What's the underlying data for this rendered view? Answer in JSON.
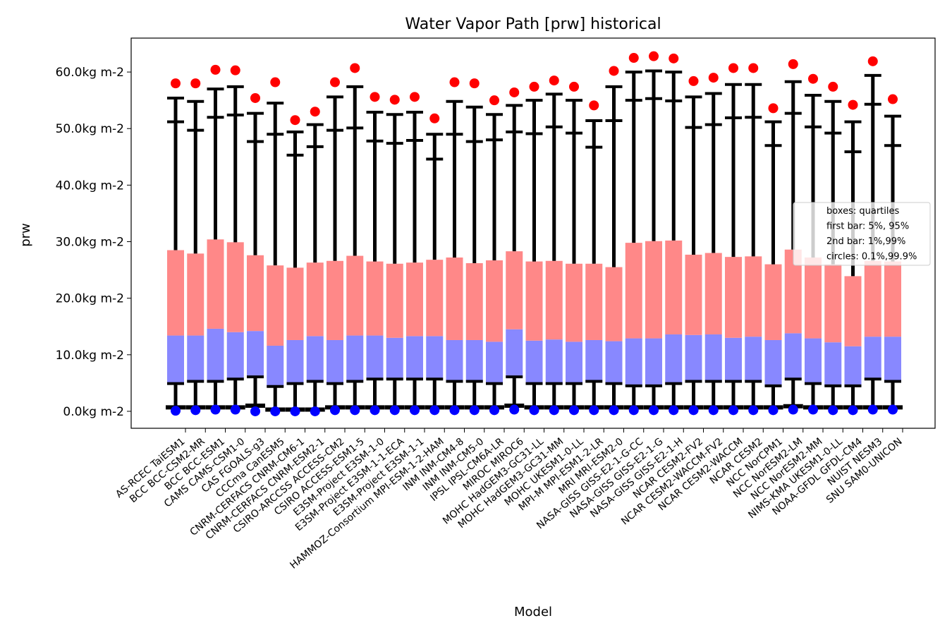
{
  "chart_data": {
    "type": "box",
    "title": "Water Vapor Path [prw] historical",
    "xlabel": "Model",
    "ylabel": "prw",
    "ylim": [
      -3,
      66
    ],
    "yticks": [
      {
        "value": 0,
        "label": "0.0kg m-2"
      },
      {
        "value": 10,
        "label": "10.0kg m-2"
      },
      {
        "value": 20,
        "label": "20.0kg m-2"
      },
      {
        "value": 30,
        "label": "30.0kg m-2"
      },
      {
        "value": 40,
        "label": "40.0kg m-2"
      },
      {
        "value": 50,
        "label": "50.0kg m-2"
      },
      {
        "value": 60,
        "label": "60.0kg m-2"
      }
    ],
    "legend": {
      "position": "right",
      "entries": [
        "boxes: quartiles",
        "first bar: 5%, 95%",
        "2nd bar: 1%,99%",
        "circles: 0.1%,99.9%"
      ]
    },
    "colors": {
      "lower_box": "#8888ff",
      "upper_box": "#ff8888",
      "whisker": "#000000",
      "high_circle": "#ff0000",
      "low_circle": "#0000ff"
    },
    "models": [
      "AS-RCEC TaiESM1",
      "BCC BCC-CSM2-MR",
      "BCC BCC-ESM1",
      "CAMS CAMS-CSM1-0",
      "CAS FGOALS-g3",
      "CCCma CanESM5",
      "CNRM-CERFACS CNRM-CM6-1",
      "CNRM-CERFACS CNRM-ESM2-1",
      "CSIRO-ARCCSS ACCESS-CM2",
      "CSIRO ACCESS-ESM1-5",
      "E3SM-Project E3SM-1-0",
      "E3SM-Project E3SM-1-1-ECA",
      "E3SM-Project E3SM-1-1",
      "HAMMOZ-Consortium MPI-ESM-1-2-HAM",
      "INM INM-CM4-8",
      "INM INM-CM5-0",
      "IPSL IPSL-CM6A-LR",
      "MIROC MIROC6",
      "MOHC HadGEM3-GC31-LL",
      "MOHC HadGEM3-GC31-MM",
      "MOHC UKESM1-0-LL",
      "MPI-M MPI-ESM1-2-LR",
      "MRI MRI-ESM2-0",
      "NASA-GISS GISS-E2-1-G-CC",
      "NASA-GISS GISS-E2-1-G",
      "NASA-GISS GISS-E2-1-H",
      "NCAR CESM2-FV2",
      "NCAR CESM2-WACCM-FV2",
      "NCAR CESM2-WACCM",
      "NCAR CESM2",
      "NCC NorCPM1",
      "NCC NorESM2-LM",
      "NCC NorESM2-MM",
      "NIMS-KMA UKESM1-0-LL",
      "NOAA-GFDL GFDL-CM4",
      "NUIST NESM3",
      "SNU SAM0-UNICON"
    ],
    "stats": [
      {
        "p0_1": 0.1,
        "p1": 0.7,
        "p5": 4.9,
        "q1": 4.9,
        "median": 13.4,
        "q3": 28.5,
        "p95": 51.2,
        "p99": 55.4,
        "p99_9": 58.0
      },
      {
        "p0_1": 0.2,
        "p1": 0.7,
        "p5": 5.3,
        "q1": 5.3,
        "median": 13.4,
        "q3": 27.9,
        "p95": 49.7,
        "p99": 54.8,
        "p99_9": 58.0
      },
      {
        "p0_1": 0.3,
        "p1": 0.7,
        "p5": 5.3,
        "q1": 5.3,
        "median": 14.6,
        "q3": 30.4,
        "p95": 52.0,
        "p99": 57.0,
        "p99_9": 60.4
      },
      {
        "p0_1": 0.3,
        "p1": 0.7,
        "p5": 5.7,
        "q1": 5.7,
        "median": 14.0,
        "q3": 29.9,
        "p95": 52.4,
        "p99": 57.4,
        "p99_9": 60.3
      },
      {
        "p0_1": 0.0,
        "p1": 1.0,
        "p5": 6.1,
        "q1": 6.1,
        "median": 14.2,
        "q3": 27.6,
        "p95": 47.7,
        "p99": 52.7,
        "p99_9": 55.4
      },
      {
        "p0_1": 0.0,
        "p1": 0.3,
        "p5": 4.4,
        "q1": 4.4,
        "median": 11.6,
        "q3": 25.8,
        "p95": 49.0,
        "p99": 54.5,
        "p99_9": 58.2
      },
      {
        "p0_1": 0.0,
        "p1": 0.3,
        "p5": 4.9,
        "q1": 4.9,
        "median": 12.6,
        "q3": 25.4,
        "p95": 45.3,
        "p99": 49.4,
        "p99_9": 51.5
      },
      {
        "p0_1": 0.0,
        "p1": 0.3,
        "p5": 5.3,
        "q1": 5.3,
        "median": 13.3,
        "q3": 26.3,
        "p95": 46.8,
        "p99": 50.7,
        "p99_9": 53.0
      },
      {
        "p0_1": 0.2,
        "p1": 0.7,
        "p5": 4.9,
        "q1": 4.9,
        "median": 12.6,
        "q3": 26.6,
        "p95": 49.7,
        "p99": 55.6,
        "p99_9": 58.2
      },
      {
        "p0_1": 0.2,
        "p1": 0.7,
        "p5": 5.3,
        "q1": 5.3,
        "median": 13.4,
        "q3": 27.5,
        "p95": 50.1,
        "p99": 57.4,
        "p99_9": 60.7
      },
      {
        "p0_1": 0.2,
        "p1": 0.7,
        "p5": 5.7,
        "q1": 5.7,
        "median": 13.4,
        "q3": 26.5,
        "p95": 47.8,
        "p99": 52.9,
        "p99_9": 55.6
      },
      {
        "p0_1": 0.2,
        "p1": 0.7,
        "p5": 5.7,
        "q1": 5.7,
        "median": 13.0,
        "q3": 26.1,
        "p95": 47.4,
        "p99": 52.5,
        "p99_9": 55.1
      },
      {
        "p0_1": 0.2,
        "p1": 0.7,
        "p5": 5.7,
        "q1": 5.7,
        "median": 13.3,
        "q3": 26.3,
        "p95": 47.9,
        "p99": 52.9,
        "p99_9": 55.6
      },
      {
        "p0_1": 0.2,
        "p1": 0.7,
        "p5": 5.7,
        "q1": 5.7,
        "median": 13.3,
        "q3": 26.8,
        "p95": 44.6,
        "p99": 49.0,
        "p99_9": 51.8
      },
      {
        "p0_1": 0.2,
        "p1": 0.7,
        "p5": 5.3,
        "q1": 5.3,
        "median": 12.6,
        "q3": 27.2,
        "p95": 49.0,
        "p99": 54.8,
        "p99_9": 58.2
      },
      {
        "p0_1": 0.2,
        "p1": 0.7,
        "p5": 5.3,
        "q1": 5.3,
        "median": 12.6,
        "q3": 26.2,
        "p95": 47.7,
        "p99": 53.8,
        "p99_9": 58.0
      },
      {
        "p0_1": 0.2,
        "p1": 0.7,
        "p5": 4.9,
        "q1": 4.9,
        "median": 12.3,
        "q3": 26.7,
        "p95": 48.0,
        "p99": 52.5,
        "p99_9": 55.0
      },
      {
        "p0_1": 0.3,
        "p1": 1.0,
        "p5": 6.1,
        "q1": 6.1,
        "median": 14.5,
        "q3": 28.3,
        "p95": 49.4,
        "p99": 54.1,
        "p99_9": 56.4
      },
      {
        "p0_1": 0.2,
        "p1": 0.7,
        "p5": 4.9,
        "q1": 4.9,
        "median": 12.5,
        "q3": 26.5,
        "p95": 49.1,
        "p99": 55.0,
        "p99_9": 57.4
      },
      {
        "p0_1": 0.2,
        "p1": 0.7,
        "p5": 4.9,
        "q1": 4.9,
        "median": 12.7,
        "q3": 26.6,
        "p95": 50.3,
        "p99": 56.1,
        "p99_9": 58.5
      },
      {
        "p0_1": 0.2,
        "p1": 0.7,
        "p5": 4.9,
        "q1": 4.9,
        "median": 12.3,
        "q3": 26.1,
        "p95": 49.2,
        "p99": 55.0,
        "p99_9": 57.4
      },
      {
        "p0_1": 0.2,
        "p1": 0.7,
        "p5": 5.3,
        "q1": 5.3,
        "median": 12.6,
        "q3": 26.1,
        "p95": 46.7,
        "p99": 51.4,
        "p99_9": 54.1
      },
      {
        "p0_1": 0.2,
        "p1": 0.7,
        "p5": 4.9,
        "q1": 4.9,
        "median": 12.4,
        "q3": 25.5,
        "p95": 51.4,
        "p99": 57.4,
        "p99_9": 60.2
      },
      {
        "p0_1": 0.2,
        "p1": 0.7,
        "p5": 4.5,
        "q1": 4.5,
        "median": 12.9,
        "q3": 29.8,
        "p95": 55.0,
        "p99": 60.0,
        "p99_9": 62.5
      },
      {
        "p0_1": 0.2,
        "p1": 0.7,
        "p5": 4.5,
        "q1": 4.5,
        "median": 12.9,
        "q3": 30.1,
        "p95": 55.3,
        "p99": 60.2,
        "p99_9": 62.8
      },
      {
        "p0_1": 0.2,
        "p1": 0.7,
        "p5": 4.9,
        "q1": 4.9,
        "median": 13.6,
        "q3": 30.2,
        "p95": 54.9,
        "p99": 60.0,
        "p99_9": 62.4
      },
      {
        "p0_1": 0.2,
        "p1": 0.7,
        "p5": 5.3,
        "q1": 5.3,
        "median": 13.5,
        "q3": 27.7,
        "p95": 50.2,
        "p99": 55.6,
        "p99_9": 58.4
      },
      {
        "p0_1": 0.2,
        "p1": 0.7,
        "p5": 5.3,
        "q1": 5.3,
        "median": 13.6,
        "q3": 28.0,
        "p95": 50.7,
        "p99": 56.2,
        "p99_9": 59.0
      },
      {
        "p0_1": 0.2,
        "p1": 0.7,
        "p5": 5.3,
        "q1": 5.3,
        "median": 13.0,
        "q3": 27.3,
        "p95": 51.9,
        "p99": 57.8,
        "p99_9": 60.7
      },
      {
        "p0_1": 0.2,
        "p1": 0.7,
        "p5": 5.3,
        "q1": 5.3,
        "median": 13.2,
        "q3": 27.4,
        "p95": 52.0,
        "p99": 57.8,
        "p99_9": 60.7
      },
      {
        "p0_1": 0.2,
        "p1": 0.7,
        "p5": 4.5,
        "q1": 4.5,
        "median": 12.6,
        "q3": 26.0,
        "p95": 47.0,
        "p99": 51.2,
        "p99_9": 53.6
      },
      {
        "p0_1": 0.3,
        "p1": 0.9,
        "p5": 5.7,
        "q1": 5.7,
        "median": 13.8,
        "q3": 28.6,
        "p95": 52.7,
        "p99": 58.3,
        "p99_9": 61.4
      },
      {
        "p0_1": 0.3,
        "p1": 0.7,
        "p5": 4.9,
        "q1": 4.9,
        "median": 12.9,
        "q3": 27.2,
        "p95": 50.3,
        "p99": 55.9,
        "p99_9": 58.8
      },
      {
        "p0_1": 0.2,
        "p1": 0.7,
        "p5": 4.5,
        "q1": 4.5,
        "median": 12.2,
        "q3": 26.0,
        "p95": 49.2,
        "p99": 54.8,
        "p99_9": 57.4
      },
      {
        "p0_1": 0.2,
        "p1": 0.7,
        "p5": 4.5,
        "q1": 4.5,
        "median": 11.5,
        "q3": 23.9,
        "p95": 45.9,
        "p99": 51.2,
        "p99_9": 54.2
      },
      {
        "p0_1": 0.3,
        "p1": 0.7,
        "p5": 5.7,
        "q1": 5.7,
        "median": 13.2,
        "q3": 26.6,
        "p95": 54.3,
        "p99": 59.4,
        "p99_9": 61.9
      },
      {
        "p0_1": 0.3,
        "p1": 0.7,
        "p5": 5.3,
        "q1": 5.3,
        "median": 13.2,
        "q3": 26.5,
        "p95": 47.0,
        "p99": 52.2,
        "p99_9": 55.2
      }
    ]
  }
}
